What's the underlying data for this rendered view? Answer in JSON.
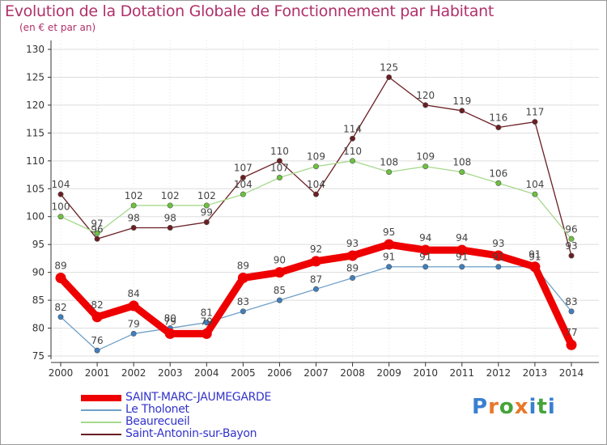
{
  "header": {
    "title": "Evolution de la Dotation Globale de Fonctionnement par Habitant",
    "subtitle": "(en € et par an)"
  },
  "logo": {
    "text": "Proxiti",
    "letters": [
      "P",
      "r",
      "o",
      "x",
      "i",
      "t",
      "i"
    ],
    "colors": [
      "#3a7fd0",
      "#e8782a",
      "#44a43a",
      "#e8782a",
      "#3a7fd0",
      "#44a43a",
      "#3a7fd0"
    ]
  },
  "chart_data": {
    "type": "line",
    "title": "Evolution de la Dotation Globale de Fonctionnement par Habitant",
    "subtitle": "(en € et par an)",
    "xlabel": "",
    "ylabel": "",
    "x": [
      "2000",
      "2001",
      "2002",
      "2003",
      "2004",
      "2005",
      "2006",
      "2007",
      "2008",
      "2009",
      "2010",
      "2011",
      "2012",
      "2013",
      "2014"
    ],
    "ylim": [
      75,
      130
    ],
    "yticks": [
      75,
      80,
      85,
      90,
      95,
      100,
      105,
      110,
      115,
      120,
      125,
      130
    ],
    "grid": true,
    "legend_position": "bottom-left",
    "series": [
      {
        "name": "Saint-Antonin-sur-Bayon",
        "color": "#6b1e22",
        "marker_color": "#6b1e22",
        "style": "thin",
        "values": [
          104,
          96,
          98,
          98,
          99,
          107,
          110,
          104,
          114,
          125,
          120,
          119,
          116,
          117,
          93
        ],
        "labels": [
          "104",
          "96",
          "98",
          "98",
          "99",
          "107",
          "110",
          "104",
          "114",
          "125",
          "120",
          "119",
          "116",
          "117",
          "93"
        ]
      },
      {
        "name": "Beaurecueil",
        "color": "#a6d98c",
        "marker_color": "#6cc23e",
        "style": "thin",
        "values": [
          100,
          97,
          102,
          102,
          102,
          104,
          107,
          109,
          110,
          108,
          109,
          108,
          106,
          104,
          96
        ],
        "labels": [
          "100",
          "97",
          "102",
          "102",
          "102",
          "104",
          "107",
          "109",
          "110",
          "108",
          "109",
          "108",
          "106",
          "104",
          "96"
        ]
      },
      {
        "name": "Le Tholonet",
        "color": "#6fa0c8",
        "marker_color": "#3f7fc0",
        "style": "thin",
        "values": [
          82,
          76,
          79,
          80,
          81,
          83,
          85,
          87,
          89,
          91,
          91,
          91,
          91,
          91,
          83
        ],
        "labels": [
          "82",
          "76",
          "79",
          "80",
          "81",
          "83",
          "85",
          "87",
          "89",
          "91",
          "91",
          "91",
          "91",
          "91",
          "83"
        ]
      },
      {
        "name": "SAINT-MARC-JAUMEGARDE",
        "color": "#ee0000",
        "marker_color": "#ee0000",
        "style": "thick",
        "values": [
          89,
          82,
          84,
          79,
          79,
          89,
          90,
          92,
          93,
          95,
          94,
          94,
          93,
          91,
          77
        ],
        "labels": [
          "89",
          "82",
          "84",
          "79",
          "79",
          "89",
          "90",
          "92",
          "93",
          "95",
          "94",
          "94",
          "93",
          "91",
          "77"
        ]
      }
    ],
    "legend_order": [
      "SAINT-MARC-JAUMEGARDE",
      "Le Tholonet",
      "Beaurecueil",
      "Saint-Antonin-sur-Bayon"
    ]
  }
}
